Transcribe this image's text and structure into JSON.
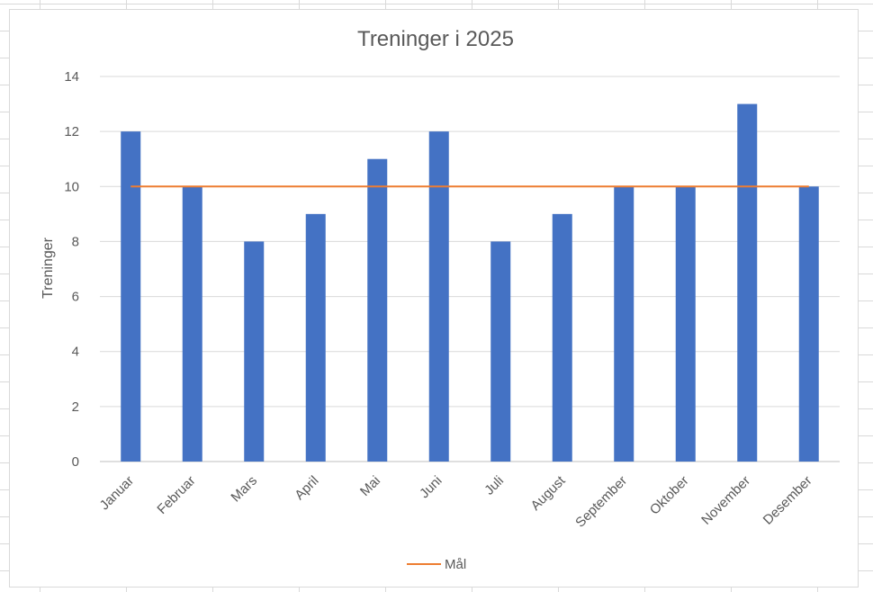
{
  "chart_data": {
    "type": "bar",
    "title": "Treninger i 2025",
    "xlabel": "",
    "ylabel": "Treninger",
    "ylim": [
      0,
      14
    ],
    "yticks": [
      0,
      2,
      4,
      6,
      8,
      10,
      12,
      14
    ],
    "grid": true,
    "legend_position": "bottom",
    "categories": [
      "Januar",
      "Februar",
      "Mars",
      "April",
      "Mai",
      "Juni",
      "Juli",
      "August",
      "September",
      "Oktober",
      "November",
      "Desember"
    ],
    "series": [
      {
        "type": "bar",
        "values": [
          12,
          10,
          8,
          9,
          11,
          12,
          8,
          9,
          10,
          10,
          13,
          10
        ],
        "color": "#4472c4",
        "show_in_legend": false
      },
      {
        "name": "Mål",
        "type": "line",
        "values": [
          10,
          10,
          10,
          10,
          10,
          10,
          10,
          10,
          10,
          10,
          10,
          10
        ],
        "color": "#ed7d31",
        "show_in_legend": true
      }
    ]
  }
}
